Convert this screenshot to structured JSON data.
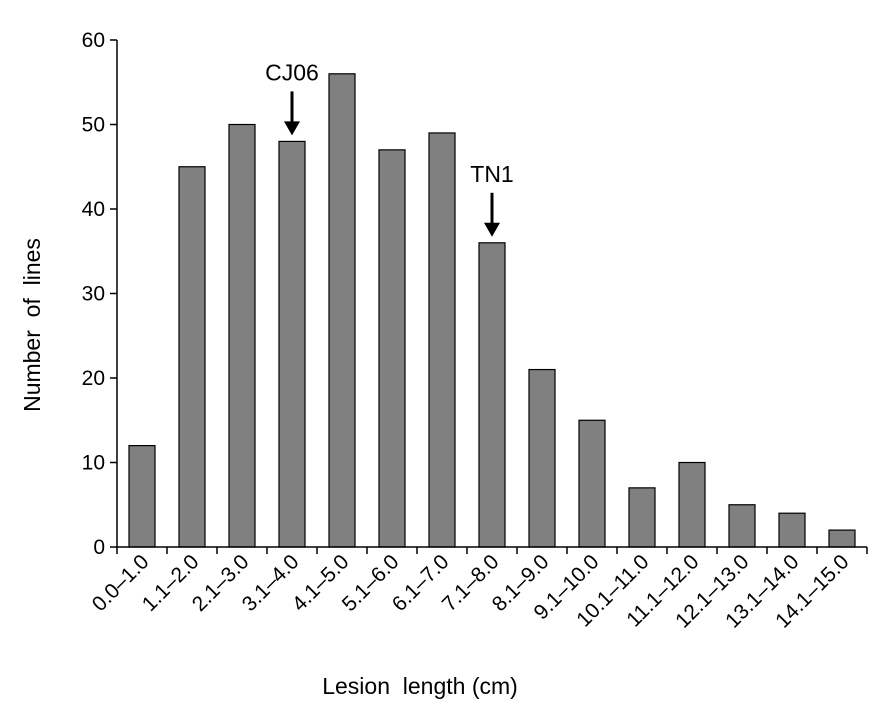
{
  "chart_data": {
    "type": "bar",
    "categories": [
      "0.0–1.0",
      "1.1–2.0",
      "2.1–3.0",
      "3.1–4.0",
      "4.1–5.0",
      "5.1–6.0",
      "6.1–7.0",
      "7.1–8.0",
      "8.1–9.0",
      "9.1–10.0",
      "10.1–11.0",
      "11.1–12.0",
      "12.1–13.0",
      "13.1–14.0",
      "14.1–15.0"
    ],
    "values": [
      12,
      45,
      50,
      48,
      56,
      47,
      49,
      36,
      21,
      15,
      7,
      10,
      5,
      4,
      2
    ],
    "xlabel": "Lesion  length (cm)",
    "ylabel": "Number  of  lines",
    "ylim": [
      0,
      60
    ],
    "yticks": [
      0,
      10,
      20,
      30,
      40,
      50,
      60
    ],
    "grid": false,
    "bar_color": "#808080",
    "annotations": [
      {
        "label": "CJ06",
        "category": "3.1–4.0"
      },
      {
        "label": "TN1",
        "category": "7.1–8.0"
      }
    ]
  }
}
